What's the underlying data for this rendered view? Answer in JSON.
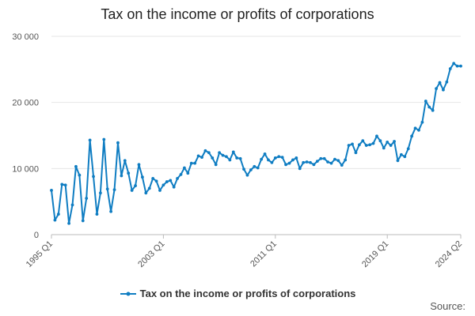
{
  "chart_data": {
    "type": "line",
    "title": "Tax on the income or profits of corporations",
    "xlabel": "",
    "ylabel": "",
    "ylim": [
      0,
      30000
    ],
    "y_ticks": [
      0,
      10000,
      20000,
      30000
    ],
    "y_tick_labels": [
      "0",
      "10 000",
      "20 000",
      "30 000"
    ],
    "x_ticks": [
      "1995 Q1",
      "2003 Q1",
      "2011 Q1",
      "2019 Q1",
      "2024 Q2"
    ],
    "grid": "horizontal",
    "legend_position": "bottom",
    "series": [
      {
        "name": "Tax on the income or profits of corporations",
        "color": "#0f7dc2",
        "x": [
          "1995 Q1",
          "1995 Q2",
          "1995 Q3",
          "1995 Q4",
          "1996 Q1",
          "1996 Q2",
          "1996 Q3",
          "1996 Q4",
          "1997 Q1",
          "1997 Q2",
          "1997 Q3",
          "1997 Q4",
          "1998 Q1",
          "1998 Q2",
          "1998 Q3",
          "1998 Q4",
          "1999 Q1",
          "1999 Q2",
          "1999 Q3",
          "1999 Q4",
          "2000 Q1",
          "2000 Q2",
          "2000 Q3",
          "2000 Q4",
          "2001 Q1",
          "2001 Q2",
          "2001 Q3",
          "2001 Q4",
          "2002 Q1",
          "2002 Q2",
          "2002 Q3",
          "2002 Q4",
          "2003 Q1",
          "2003 Q2",
          "2003 Q3",
          "2003 Q4",
          "2004 Q1",
          "2004 Q2",
          "2004 Q3",
          "2004 Q4",
          "2005 Q1",
          "2005 Q2",
          "2005 Q3",
          "2005 Q4",
          "2006 Q1",
          "2006 Q2",
          "2006 Q3",
          "2006 Q4",
          "2007 Q1",
          "2007 Q2",
          "2007 Q3",
          "2007 Q4",
          "2008 Q1",
          "2008 Q2",
          "2008 Q3",
          "2008 Q4",
          "2009 Q1",
          "2009 Q2",
          "2009 Q3",
          "2009 Q4",
          "2010 Q1",
          "2010 Q2",
          "2010 Q3",
          "2010 Q4",
          "2011 Q1",
          "2011 Q2",
          "2011 Q3",
          "2011 Q4",
          "2012 Q1",
          "2012 Q2",
          "2012 Q3",
          "2012 Q4",
          "2013 Q1",
          "2013 Q2",
          "2013 Q3",
          "2013 Q4",
          "2014 Q1",
          "2014 Q2",
          "2014 Q3",
          "2014 Q4",
          "2015 Q1",
          "2015 Q2",
          "2015 Q3",
          "2015 Q4",
          "2016 Q1",
          "2016 Q2",
          "2016 Q3",
          "2016 Q4",
          "2017 Q1",
          "2017 Q2",
          "2017 Q3",
          "2017 Q4",
          "2018 Q1",
          "2018 Q2",
          "2018 Q3",
          "2018 Q4",
          "2019 Q1",
          "2019 Q2",
          "2019 Q3",
          "2019 Q4",
          "2020 Q1",
          "2020 Q2",
          "2020 Q3",
          "2020 Q4",
          "2021 Q1",
          "2021 Q2",
          "2021 Q3",
          "2021 Q4",
          "2022 Q1",
          "2022 Q2",
          "2022 Q3",
          "2022 Q4",
          "2023 Q1",
          "2023 Q2",
          "2023 Q3",
          "2023 Q4",
          "2024 Q1",
          "2024 Q2"
        ],
        "values": [
          6700,
          2200,
          3100,
          7600,
          7500,
          1700,
          4500,
          10300,
          9000,
          2100,
          5500,
          14300,
          8800,
          3100,
          6300,
          14400,
          6900,
          3500,
          6800,
          13900,
          8900,
          11200,
          9300,
          6700,
          7400,
          10600,
          8700,
          6300,
          7000,
          8500,
          8100,
          6700,
          7500,
          8000,
          8200,
          7200,
          8500,
          9100,
          10100,
          9300,
          10800,
          10800,
          11900,
          11700,
          12700,
          12400,
          11600,
          10600,
          12400,
          12000,
          11800,
          11300,
          12500,
          11600,
          11500,
          9900,
          9000,
          9800,
          10300,
          10100,
          11400,
          12200,
          11300,
          10900,
          11600,
          11800,
          11700,
          10600,
          10800,
          11300,
          11600,
          10000,
          10900,
          11000,
          10900,
          10600,
          11100,
          11500,
          11500,
          11000,
          10800,
          11400,
          11200,
          10500,
          11300,
          13500,
          13700,
          12400,
          13600,
          14200,
          13500,
          13600,
          13800,
          14900,
          14200,
          13100,
          14000,
          13500,
          14100,
          11200,
          12100,
          11800,
          13000,
          14900,
          16100,
          15800,
          17000,
          20200,
          19300,
          18800,
          22100,
          23000,
          21900,
          23100,
          25100,
          25900,
          25500,
          25500
        ]
      }
    ]
  },
  "source_label": "Source:"
}
